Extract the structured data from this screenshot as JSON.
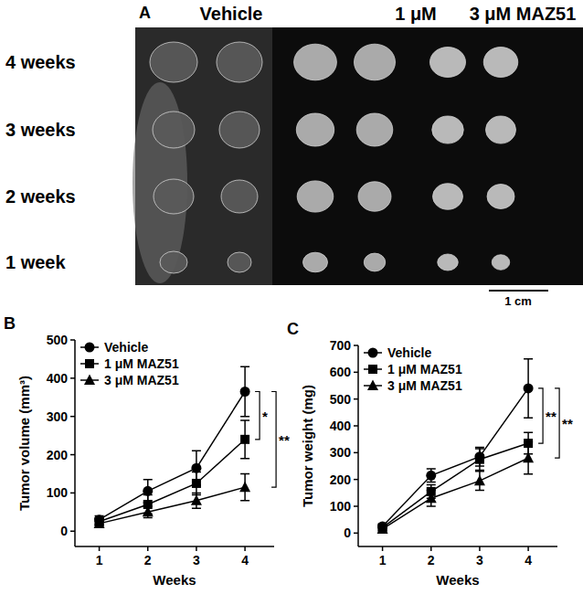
{
  "panel_a": {
    "label": "A",
    "columns": [
      "Vehicle",
      "1 μM",
      "3 μM MAZ51"
    ],
    "rows": [
      "4 weeks",
      "3 weeks",
      "2 weeks",
      "1 week"
    ],
    "scale_bar": "1 cm"
  },
  "chart_data": [
    {
      "type": "line",
      "panel_label": "B",
      "x_label": "Weeks",
      "y_label": "Tumor volume (mm³)",
      "x": [
        1,
        2,
        3,
        4
      ],
      "xlim": [
        0.5,
        4.6
      ],
      "xticks": [
        1,
        2,
        3,
        4
      ],
      "ylim": [
        -40,
        500
      ],
      "yticks": [
        0,
        100,
        200,
        300,
        400,
        500
      ],
      "legend": "upper left",
      "series": [
        {
          "name": "Vehicle",
          "color": "#000000",
          "marker": "circle",
          "values": [
            30,
            105,
            165,
            365
          ],
          "errors": [
            10,
            30,
            45,
            65
          ]
        },
        {
          "name": "1 μM MAZ51",
          "color": "#000000",
          "marker": "square",
          "values": [
            25,
            70,
            125,
            240
          ],
          "errors": [
            8,
            25,
            30,
            50
          ]
        },
        {
          "name": "3 μM MAZ51",
          "color": "#000000",
          "marker": "triangle",
          "values": [
            20,
            50,
            80,
            115
          ],
          "errors": [
            5,
            15,
            20,
            35
          ]
        }
      ],
      "significance": [
        {
          "label": "*",
          "from": "Vehicle",
          "to": "1 μM MAZ51"
        },
        {
          "label": "**",
          "from": "Vehicle",
          "to": "3 μM MAZ51"
        }
      ]
    },
    {
      "type": "line",
      "panel_label": "C",
      "x_label": "Weeks",
      "y_label": "Tumor weight (mg)",
      "x": [
        1,
        2,
        3,
        4
      ],
      "xlim": [
        0.5,
        4.6
      ],
      "xticks": [
        1,
        2,
        3,
        4
      ],
      "ylim": [
        -50,
        700
      ],
      "yticks": [
        0,
        100,
        200,
        300,
        400,
        500,
        600,
        700
      ],
      "legend": "upper left",
      "series": [
        {
          "name": "Vehicle",
          "color": "#000000",
          "marker": "circle",
          "values": [
            25,
            215,
            285,
            540
          ],
          "errors": [
            5,
            25,
            35,
            110
          ]
        },
        {
          "name": "1 μM MAZ51",
          "color": "#000000",
          "marker": "square",
          "values": [
            20,
            155,
            275,
            335
          ],
          "errors": [
            5,
            25,
            40,
            40
          ]
        },
        {
          "name": "3 μM MAZ51",
          "color": "#000000",
          "marker": "triangle",
          "values": [
            15,
            130,
            195,
            280
          ],
          "errors": [
            5,
            30,
            35,
            60
          ]
        }
      ],
      "significance": [
        {
          "label": "**",
          "from": "Vehicle",
          "to": "1 μM MAZ51"
        },
        {
          "label": "**",
          "from": "Vehicle",
          "to": "3 μM MAZ51"
        }
      ]
    }
  ]
}
